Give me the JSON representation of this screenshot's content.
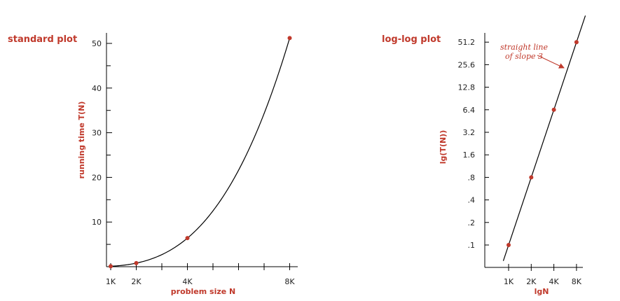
{
  "chart_data": [
    {
      "type": "line",
      "title": "standard plot",
      "xlabel": "problem size N",
      "ylabel": "running time T(N)",
      "xlim": [
        0,
        9
      ],
      "ylim": [
        0,
        50
      ],
      "x_ticks": [
        1,
        2,
        4,
        8
      ],
      "x_tick_labels": [
        "1K",
        "2K",
        "4K",
        "8K"
      ],
      "y_ticks": [
        10,
        20,
        30,
        40,
        50
      ],
      "y_tick_labels": [
        "10",
        "20",
        "30",
        "40",
        "50"
      ],
      "series": [
        {
          "x": [
            1,
            2,
            4,
            8
          ],
          "y": [
            0.1,
            0.8,
            6.4,
            51.2
          ]
        }
      ],
      "curve": "cubic",
      "colors": {
        "points": "#c0392b",
        "line": "#000000",
        "labels": "#c0392b"
      }
    },
    {
      "type": "line",
      "title": "log-log plot",
      "xlabel": "lgN",
      "ylabel": "lg(T(N))",
      "x_scale": "log2",
      "y_scale": "log2",
      "x_ticks": [
        1,
        2,
        4,
        8
      ],
      "x_tick_labels": [
        "1K",
        "2K",
        "4K",
        "8K"
      ],
      "y_ticks": [
        0.1,
        0.2,
        0.4,
        0.8,
        1.6,
        3.2,
        6.4,
        12.8,
        25.6,
        51.2
      ],
      "y_tick_labels": [
        ".1",
        ".2",
        ".4",
        ".8",
        "1.6",
        "3.2",
        "6.4",
        "12.8",
        "25.6",
        "51.2"
      ],
      "series": [
        {
          "x": [
            1,
            2,
            4,
            8
          ],
          "y": [
            0.1,
            0.8,
            6.4,
            51.2
          ]
        }
      ],
      "annotation": {
        "lines": [
          "straight line",
          "of slope 3"
        ]
      },
      "colors": {
        "points": "#c0392b",
        "line": "#000000",
        "labels": "#c0392b"
      }
    }
  ]
}
